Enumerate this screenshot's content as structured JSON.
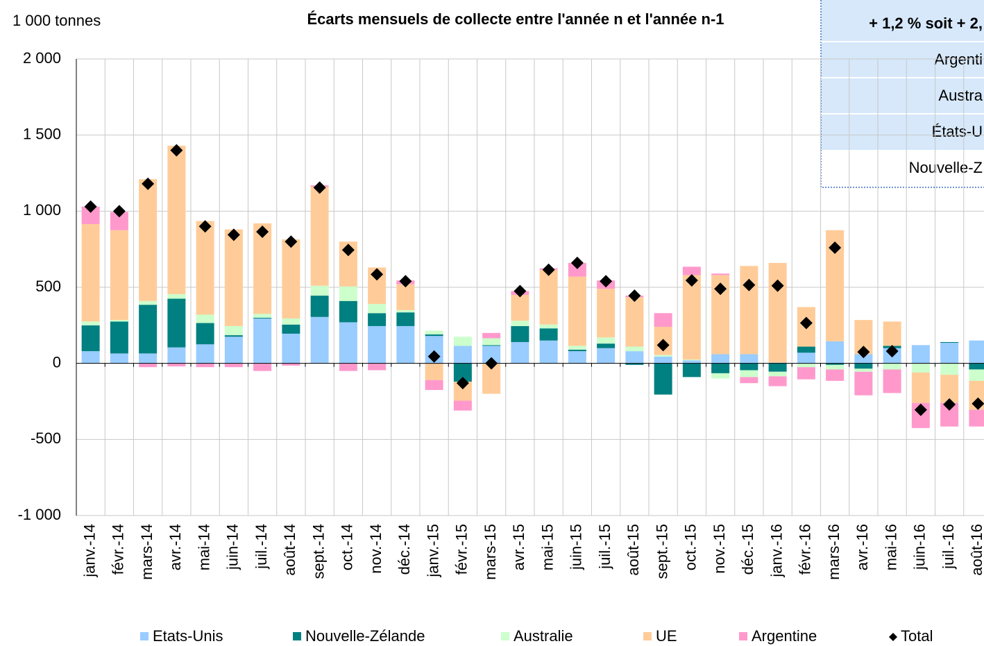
{
  "chart_data": {
    "type": "stacked-bar",
    "title": "Écarts mensuels de collecte entre l'année n et l'année n-1",
    "y_unit": "1 000 tonnes",
    "categories": [
      "janv.-14",
      "févr.-14",
      "mars-14",
      "avr.-14",
      "mai-14",
      "juin-14",
      "juil.-14",
      "août-14",
      "sept.-14",
      "oct.-14",
      "nov.-14",
      "déc.-14",
      "janv.-15",
      "févr.-15",
      "mars-15",
      "avr.-15",
      "mai-15",
      "juin-15",
      "juil.-15",
      "août-15",
      "sept.-15",
      "oct.-15",
      "nov.-15",
      "déc.-15",
      "janv.-16",
      "févr.-16",
      "mars-16",
      "avr.-16",
      "mai-16",
      "juin-16",
      "juil.-16",
      "août-16"
    ],
    "series": [
      {
        "name": "Etats-Unis",
        "color": "#99ccff",
        "values": [
          80,
          65,
          65,
          105,
          125,
          175,
          295,
          195,
          305,
          270,
          245,
          245,
          180,
          115,
          115,
          140,
          150,
          80,
          100,
          80,
          45,
          20,
          60,
          60,
          5,
          70,
          145,
          60,
          100,
          120,
          135,
          150
        ]
      },
      {
        "name": "Nouvelle-Zélande",
        "color": "#008080",
        "values": [
          170,
          210,
          320,
          320,
          140,
          10,
          5,
          60,
          140,
          140,
          85,
          90,
          10,
          -120,
          5,
          105,
          80,
          10,
          30,
          -10,
          -205,
          -90,
          -65,
          -45,
          -55,
          40,
          -10,
          -35,
          15,
          0,
          5,
          -40
        ]
      },
      {
        "name": "Australie",
        "color": "#ccffcc",
        "values": [
          25,
          10,
          25,
          30,
          55,
          60,
          25,
          40,
          65,
          95,
          60,
          15,
          25,
          60,
          45,
          35,
          25,
          25,
          40,
          30,
          10,
          5,
          -35,
          -45,
          -30,
          -25,
          -30,
          -20,
          -40,
          -60,
          -75,
          -75
        ]
      },
      {
        "name": "UE",
        "color": "#ffcc99",
        "values": [
          640,
          590,
          800,
          975,
          615,
          635,
          595,
          520,
          650,
          295,
          240,
          170,
          -110,
          -125,
          -200,
          170,
          360,
          455,
          320,
          325,
          185,
          555,
          520,
          580,
          655,
          260,
          730,
          225,
          160,
          -200,
          -185,
          -190
        ]
      },
      {
        "name": "Argentine",
        "color": "#ff99cc",
        "values": [
          115,
          120,
          -25,
          -20,
          -25,
          -25,
          -50,
          -15,
          10,
          -50,
          -45,
          25,
          -65,
          -65,
          35,
          25,
          10,
          90,
          55,
          10,
          90,
          55,
          10,
          -40,
          -65,
          -80,
          -75,
          -155,
          -155,
          -165,
          -155,
          -110
        ]
      }
    ],
    "total": {
      "name": "Total",
      "color": "#000000",
      "values": [
        1030,
        1000,
        1180,
        1400,
        900,
        845,
        865,
        800,
        1155,
        745,
        585,
        540,
        45,
        -130,
        0,
        475,
        615,
        660,
        540,
        445,
        120,
        545,
        490,
        515,
        510,
        265,
        760,
        75,
        80,
        -305,
        -270,
        -265
      ]
    },
    "ylim": [
      -1000,
      2000
    ],
    "yticks": [
      {
        "value": -1000,
        "label": "-1 000"
      },
      -500,
      0,
      500,
      {
        "value": 1000,
        "label": "1 000"
      },
      {
        "value": 1500,
        "label": "1 500"
      },
      {
        "value": 2000,
        "label": "2 000"
      }
    ],
    "grid": true,
    "legend": "bottom",
    "inset": {
      "title": "+ 1,2 % soit + 2,",
      "rows": [
        "Argenti",
        "Austra",
        "États-U",
        "Nouvelle-Z"
      ]
    }
  }
}
